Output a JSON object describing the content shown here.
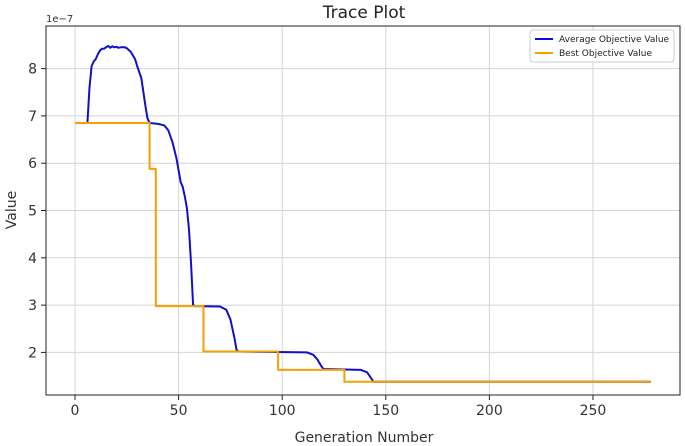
{
  "chart_data": {
    "type": "line",
    "title": "Trace Plot",
    "xlabel": "Generation Number",
    "ylabel": "Value",
    "y_offset_label": "1e−7",
    "xlim": [
      -14,
      292
    ],
    "ylim": [
      1.1,
      8.9
    ],
    "x_ticks": [
      0,
      50,
      100,
      150,
      200,
      250
    ],
    "y_ticks": [
      2,
      3,
      4,
      5,
      6,
      7,
      8
    ],
    "grid": true,
    "legend_position": "top-right",
    "series": [
      {
        "name": "Average Objective Value",
        "color": "#1010cc",
        "points": [
          [
            0,
            6.85
          ],
          [
            6,
            6.85
          ],
          [
            7,
            7.6
          ],
          [
            8,
            8.05
          ],
          [
            9,
            8.15
          ],
          [
            10,
            8.2
          ],
          [
            11,
            8.3
          ],
          [
            12,
            8.38
          ],
          [
            13,
            8.42
          ],
          [
            14,
            8.42
          ],
          [
            15,
            8.45
          ],
          [
            16,
            8.48
          ],
          [
            17,
            8.44
          ],
          [
            18,
            8.47
          ],
          [
            19,
            8.45
          ],
          [
            20,
            8.46
          ],
          [
            21,
            8.44
          ],
          [
            22,
            8.45
          ],
          [
            24,
            8.45
          ],
          [
            25,
            8.43
          ],
          [
            27,
            8.35
          ],
          [
            29,
            8.2
          ],
          [
            30,
            8.05
          ],
          [
            32,
            7.8
          ],
          [
            33,
            7.5
          ],
          [
            34,
            7.2
          ],
          [
            35,
            6.95
          ],
          [
            36,
            6.85
          ],
          [
            40,
            6.83
          ],
          [
            43,
            6.8
          ],
          [
            45,
            6.7
          ],
          [
            47,
            6.45
          ],
          [
            49,
            6.1
          ],
          [
            51,
            5.6
          ],
          [
            52,
            5.5
          ],
          [
            53,
            5.3
          ],
          [
            54,
            5.05
          ],
          [
            55,
            4.6
          ],
          [
            56,
            3.9
          ],
          [
            57,
            3.0
          ],
          [
            58,
            2.98
          ],
          [
            70,
            2.97
          ],
          [
            73,
            2.9
          ],
          [
            75,
            2.7
          ],
          [
            77,
            2.3
          ],
          [
            78,
            2.05
          ],
          [
            79,
            2.02
          ],
          [
            112,
            2.0
          ],
          [
            115,
            1.95
          ],
          [
            117,
            1.85
          ],
          [
            119,
            1.7
          ],
          [
            120,
            1.65
          ],
          [
            138,
            1.63
          ],
          [
            141,
            1.58
          ],
          [
            143,
            1.45
          ],
          [
            144,
            1.38
          ],
          [
            278,
            1.38
          ]
        ]
      },
      {
        "name": "Best Objective Value",
        "color": "#f5a000",
        "points": [
          [
            0,
            6.85
          ],
          [
            36,
            6.85
          ],
          [
            36,
            5.88
          ],
          [
            39,
            5.88
          ],
          [
            39,
            2.98
          ],
          [
            62,
            2.98
          ],
          [
            62,
            2.02
          ],
          [
            98,
            2.02
          ],
          [
            98,
            1.63
          ],
          [
            130,
            1.63
          ],
          [
            130,
            1.38
          ],
          [
            278,
            1.38
          ]
        ]
      }
    ]
  }
}
